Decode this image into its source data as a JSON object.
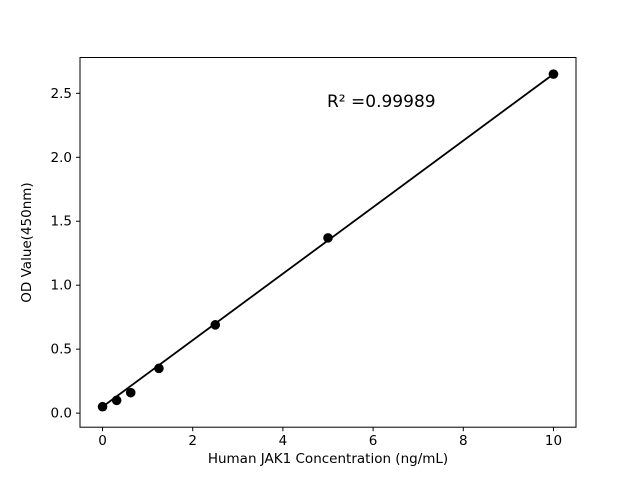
{
  "chart_data": {
    "type": "scatter",
    "title": "",
    "xlabel": "Human JAK1 Concentration (ng/mL)",
    "ylabel": "OD Value(450nm)",
    "annotation": "R² =0.99989",
    "x": [
      0,
      0.313,
      0.625,
      1.25,
      2.5,
      5,
      10
    ],
    "y": [
      0.05,
      0.1,
      0.16,
      0.35,
      0.69,
      1.37,
      2.65
    ],
    "fit_line": {
      "x": [
        0,
        10
      ],
      "y": [
        0.05,
        2.65
      ]
    },
    "xticks": [
      "0",
      "2",
      "4",
      "6",
      "8",
      "10"
    ],
    "yticks": [
      "0.0",
      "0.5",
      "1.0",
      "1.5",
      "2.0",
      "2.5"
    ],
    "xlim": [
      -0.5,
      10.5
    ],
    "ylim": [
      -0.11,
      2.78
    ],
    "grid": false,
    "legend": "none",
    "marker_color": "#000000",
    "line_color": "#000000",
    "axis_color": "#000000",
    "background": "#ffffff"
  }
}
